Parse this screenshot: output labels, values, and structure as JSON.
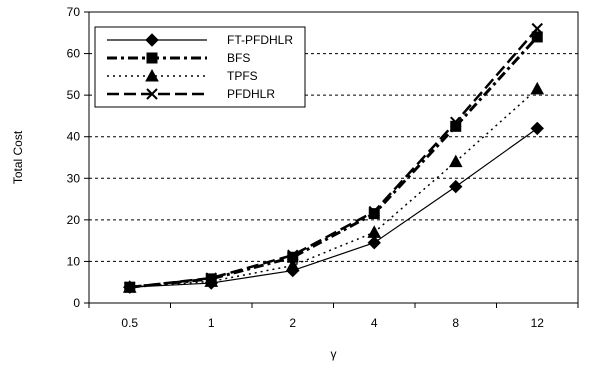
{
  "chart_data": {
    "type": "line",
    "title": "",
    "xlabel": "γ",
    "ylabel": "Total Cost",
    "categories": [
      "0.5",
      "1",
      "2",
      "4",
      "8",
      "12"
    ],
    "ylim": [
      0,
      70
    ],
    "yticks": [
      0,
      10,
      20,
      30,
      40,
      50,
      60,
      70
    ],
    "grid": "horizontal dashed",
    "legend_position": "top-left",
    "series": [
      {
        "name": "FT-PFDHLR",
        "values": [
          3.8,
          4.8,
          7.8,
          14.5,
          28,
          42
        ],
        "marker": "diamond",
        "dash": "solid",
        "color": "#000000"
      },
      {
        "name": "BFS",
        "values": [
          3.8,
          5.8,
          11,
          21.5,
          42.5,
          64
        ],
        "marker": "square",
        "dash": "dashdot",
        "color": "#000000"
      },
      {
        "name": "TPFS",
        "values": [
          3.8,
          5.2,
          9,
          17,
          34,
          51.5
        ],
        "marker": "triangle",
        "dash": "dotted",
        "color": "#000000"
      },
      {
        "name": "PFDHLR",
        "values": [
          3.8,
          6,
          11.5,
          22,
          43.5,
          66
        ],
        "marker": "x",
        "dash": "longdash",
        "color": "#000000"
      }
    ]
  }
}
